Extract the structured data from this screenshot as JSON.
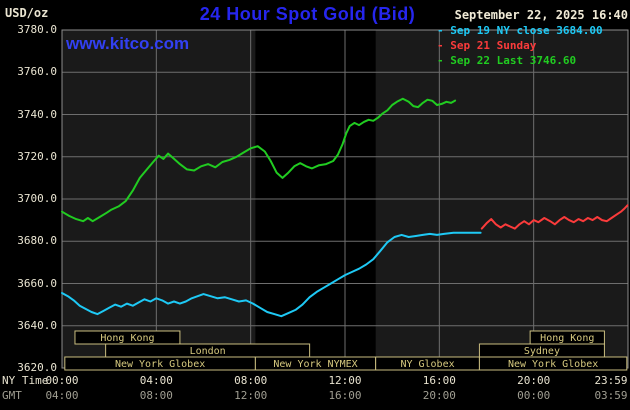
{
  "header": {
    "units": "USD/oz",
    "title": "24 Hour Spot Gold (Bid)",
    "datetime": "September 22, 2025 16:40",
    "watermark": "www.kitco.com",
    "legend": [
      {
        "marker": "-",
        "label": "Sep 19 NY close 3684.00",
        "color": "#1ec9f5"
      },
      {
        "marker": "-",
        "label": "Sep 21 Sunday",
        "color": "#fb3b3b"
      },
      {
        "marker": "-",
        "label": "Sep 22 Last 3746.60",
        "color": "#21cc21"
      }
    ]
  },
  "axes": {
    "y_ticks": [
      "3780.0",
      "3760.0",
      "3740.0",
      "3720.0",
      "3700.0",
      "3680.0",
      "3660.0",
      "3640.0",
      "3620.0"
    ],
    "x_row1_label": "NY Time",
    "x_row1": [
      "00:00",
      "04:00",
      "08:00",
      "12:00",
      "16:00",
      "20:00",
      "23:59"
    ],
    "x_row2_label": "GMT",
    "x_row2": [
      "04:00",
      "08:00",
      "12:00",
      "16:00",
      "20:00",
      "00:00",
      "03:59"
    ]
  },
  "colors": {
    "plot_bg": "#1a1a1a",
    "band": "#000000",
    "grid": "#6e6e6e",
    "border": "#8c8c8c",
    "session_border": "#c9bd7f",
    "session_text": "#d6c97f"
  },
  "chart_data": {
    "type": "line",
    "title": "24 Hour Spot Gold (Bid)",
    "xlabel": "NY Time",
    "ylabel": "USD/oz",
    "xlim": [
      0,
      24
    ],
    "ylim": [
      3620,
      3780
    ],
    "grid": true,
    "legend_position": "top-right",
    "band": {
      "start": 8.2,
      "end": 13.3,
      "meaning": "New York NYMEX hours"
    },
    "sessions": [
      {
        "row": 0,
        "start": 0.55,
        "end": 5.0,
        "label": "Hong Kong"
      },
      {
        "row": 0,
        "start": 19.85,
        "end": 23.0,
        "label": "Hong Kong"
      },
      {
        "row": 1,
        "start": 1.85,
        "end": 10.5,
        "label": "London"
      },
      {
        "row": 1,
        "start": 17.7,
        "end": 23.0,
        "label": "Sydney"
      },
      {
        "row": 2,
        "start": 0.12,
        "end": 8.2,
        "label": "New York Globex"
      },
      {
        "row": 2,
        "start": 8.2,
        "end": 13.3,
        "label": "New York NYMEX"
      },
      {
        "row": 2,
        "start": 13.3,
        "end": 17.7,
        "label": "NY Globex"
      },
      {
        "row": 2,
        "start": 17.7,
        "end": 23.95,
        "label": "New York Globex"
      }
    ],
    "series": [
      {
        "name": "Sep 19 NY close 3684.00",
        "color": "#1ec9f5",
        "points": [
          [
            0,
            3655.5
          ],
          [
            0.25,
            3654
          ],
          [
            0.5,
            3652
          ],
          [
            0.75,
            3649.5
          ],
          [
            1,
            3648
          ],
          [
            1.25,
            3646.5
          ],
          [
            1.5,
            3645.5
          ],
          [
            1.75,
            3647
          ],
          [
            2,
            3648.5
          ],
          [
            2.25,
            3650
          ],
          [
            2.5,
            3649
          ],
          [
            2.75,
            3650.5
          ],
          [
            3,
            3649.5
          ],
          [
            3.25,
            3651
          ],
          [
            3.5,
            3652.5
          ],
          [
            3.75,
            3651.5
          ],
          [
            4,
            3653
          ],
          [
            4.25,
            3652
          ],
          [
            4.5,
            3650.5
          ],
          [
            4.75,
            3651.5
          ],
          [
            5,
            3650.5
          ],
          [
            5.25,
            3651.5
          ],
          [
            5.5,
            3653
          ],
          [
            5.75,
            3654
          ],
          [
            6,
            3655
          ],
          [
            6.3,
            3654
          ],
          [
            6.6,
            3653
          ],
          [
            6.9,
            3653.5
          ],
          [
            7.2,
            3652.5
          ],
          [
            7.5,
            3651.5
          ],
          [
            7.8,
            3652
          ],
          [
            8.1,
            3650.5
          ],
          [
            8.4,
            3648.5
          ],
          [
            8.7,
            3646.5
          ],
          [
            9,
            3645.5
          ],
          [
            9.3,
            3644.5
          ],
          [
            9.6,
            3646
          ],
          [
            9.9,
            3647.5
          ],
          [
            10.2,
            3650
          ],
          [
            10.5,
            3653.5
          ],
          [
            10.8,
            3656
          ],
          [
            11.1,
            3658
          ],
          [
            11.4,
            3660
          ],
          [
            11.7,
            3662
          ],
          [
            12,
            3664
          ],
          [
            12.3,
            3665.5
          ],
          [
            12.6,
            3667
          ],
          [
            12.9,
            3669
          ],
          [
            13.2,
            3671.5
          ],
          [
            13.5,
            3675.5
          ],
          [
            13.8,
            3679.5
          ],
          [
            14.1,
            3682
          ],
          [
            14.4,
            3683
          ],
          [
            14.7,
            3682
          ],
          [
            15,
            3682.5
          ],
          [
            15.3,
            3683
          ],
          [
            15.6,
            3683.5
          ],
          [
            15.9,
            3683
          ],
          [
            16.2,
            3683.5
          ],
          [
            16.6,
            3684
          ],
          [
            17,
            3684
          ],
          [
            17.4,
            3684
          ],
          [
            17.75,
            3684
          ]
        ]
      },
      {
        "name": "Sep 21 Sunday",
        "color": "#fb3b3b",
        "points": [
          [
            17.8,
            3686
          ],
          [
            18,
            3688.5
          ],
          [
            18.2,
            3690.5
          ],
          [
            18.4,
            3688
          ],
          [
            18.6,
            3686.5
          ],
          [
            18.8,
            3688
          ],
          [
            19,
            3687
          ],
          [
            19.2,
            3686
          ],
          [
            19.4,
            3688
          ],
          [
            19.6,
            3689.5
          ],
          [
            19.8,
            3688
          ],
          [
            20,
            3690
          ],
          [
            20.2,
            3689
          ],
          [
            20.45,
            3691
          ],
          [
            20.7,
            3689.5
          ],
          [
            20.9,
            3688
          ],
          [
            21.1,
            3690
          ],
          [
            21.3,
            3691.5
          ],
          [
            21.5,
            3690
          ],
          [
            21.7,
            3689
          ],
          [
            21.9,
            3690.5
          ],
          [
            22.1,
            3689.5
          ],
          [
            22.3,
            3691
          ],
          [
            22.5,
            3690
          ],
          [
            22.7,
            3691.5
          ],
          [
            22.9,
            3690
          ],
          [
            23.1,
            3689.5
          ],
          [
            23.3,
            3691
          ],
          [
            23.5,
            3692.5
          ],
          [
            23.7,
            3694
          ],
          [
            23.85,
            3695.5
          ],
          [
            23.98,
            3697
          ]
        ]
      },
      {
        "name": "Sep 22 Last 3746.60",
        "color": "#21cc21",
        "points": [
          [
            0,
            3694
          ],
          [
            0.3,
            3692
          ],
          [
            0.6,
            3690.5
          ],
          [
            0.9,
            3689.5
          ],
          [
            1.1,
            3691
          ],
          [
            1.3,
            3689.5
          ],
          [
            1.6,
            3691.5
          ],
          [
            1.9,
            3693.5
          ],
          [
            2.1,
            3695
          ],
          [
            2.4,
            3696.5
          ],
          [
            2.7,
            3699
          ],
          [
            3,
            3704
          ],
          [
            3.3,
            3710
          ],
          [
            3.6,
            3714
          ],
          [
            3.9,
            3718
          ],
          [
            4.1,
            3720.5
          ],
          [
            4.3,
            3719
          ],
          [
            4.5,
            3721.5
          ],
          [
            4.7,
            3719.5
          ],
          [
            5,
            3716.5
          ],
          [
            5.3,
            3714
          ],
          [
            5.6,
            3713.5
          ],
          [
            5.9,
            3715.5
          ],
          [
            6.2,
            3716.5
          ],
          [
            6.5,
            3715
          ],
          [
            6.8,
            3717.5
          ],
          [
            7.1,
            3718.5
          ],
          [
            7.4,
            3720
          ],
          [
            7.7,
            3722
          ],
          [
            8,
            3724
          ],
          [
            8.3,
            3725
          ],
          [
            8.6,
            3722.5
          ],
          [
            8.85,
            3718
          ],
          [
            9.1,
            3712.5
          ],
          [
            9.35,
            3710
          ],
          [
            9.6,
            3712.5
          ],
          [
            9.85,
            3715.5
          ],
          [
            10.1,
            3717
          ],
          [
            10.35,
            3715.5
          ],
          [
            10.6,
            3714.5
          ],
          [
            10.9,
            3716
          ],
          [
            11.2,
            3716.5
          ],
          [
            11.5,
            3718
          ],
          [
            11.7,
            3721
          ],
          [
            11.9,
            3726
          ],
          [
            12.05,
            3731
          ],
          [
            12.2,
            3734.5
          ],
          [
            12.4,
            3736
          ],
          [
            12.6,
            3735
          ],
          [
            12.8,
            3736.5
          ],
          [
            13,
            3737.5
          ],
          [
            13.2,
            3737
          ],
          [
            13.4,
            3738.5
          ],
          [
            13.6,
            3740.5
          ],
          [
            13.8,
            3742
          ],
          [
            14,
            3744.5
          ],
          [
            14.2,
            3746
          ],
          [
            14.45,
            3747.5
          ],
          [
            14.7,
            3746
          ],
          [
            14.9,
            3744
          ],
          [
            15.1,
            3743.5
          ],
          [
            15.3,
            3745.5
          ],
          [
            15.5,
            3747
          ],
          [
            15.7,
            3746.5
          ],
          [
            15.9,
            3744.5
          ],
          [
            16.1,
            3745
          ],
          [
            16.3,
            3746
          ],
          [
            16.5,
            3745.5
          ],
          [
            16.67,
            3746.6
          ]
        ]
      }
    ]
  }
}
